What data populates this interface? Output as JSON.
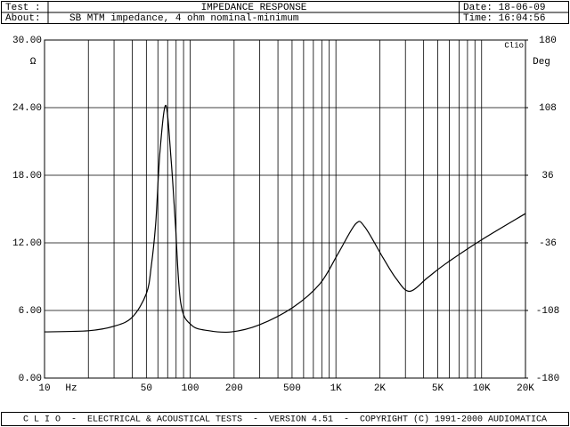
{
  "chart_data": {
    "type": "line",
    "test_label": "Test :",
    "title": "IMPEDANCE RESPONSE",
    "date": "Date: 18-06-09",
    "about_label": "About:",
    "about": "SB MTM impedance, 4 ohm nominal-minimum",
    "time": "Time: 16:04:56",
    "footer": "C L I O  -  ELECTRICAL & ACOUSTICAL TESTS  -  VERSION 4.51  -  COPYRIGHT (C) 1991-2000 AUDIOMATICA",
    "x_unit": "Hz",
    "y_unit": "Ω",
    "y2_unit": "Deg",
    "brand": "Clio",
    "log_x": true,
    "grid": true,
    "xlim": [
      10,
      20000
    ],
    "xticks": [
      10,
      50,
      100,
      200,
      500,
      {
        "value": 1000,
        "label": "1K"
      },
      {
        "value": 2000,
        "label": "2K"
      },
      {
        "value": 5000,
        "label": "5K"
      },
      {
        "value": 10000,
        "label": "10K"
      },
      {
        "value": 20000,
        "label": "20K"
      }
    ],
    "xgrid": [
      20,
      30,
      40,
      60,
      70,
      80,
      90,
      300,
      400,
      600,
      700,
      800,
      900,
      3000,
      4000,
      6000,
      7000,
      8000,
      9000
    ],
    "ylim": [
      0,
      30
    ],
    "yticks": [
      {
        "value": 0,
        "label": "0.00"
      },
      {
        "value": 6,
        "label": "6.00"
      },
      {
        "value": 12,
        "label": "12.00"
      },
      {
        "value": 18,
        "label": "18.00"
      },
      {
        "value": 24,
        "label": "24.00"
      },
      {
        "value": 30,
        "label": "30.00"
      }
    ],
    "y2lim": [
      -180,
      180
    ],
    "y2ticks": [
      -180,
      -108,
      -36,
      36,
      108,
      180
    ],
    "x": [
      10,
      20,
      30,
      40,
      50,
      54,
      58,
      62,
      68,
      74,
      79,
      86,
      102,
      135,
      192,
      295,
      510,
      780,
      1040,
      1370,
      1580,
      2100,
      2600,
      3200,
      4250,
      5600,
      9800,
      20000
    ],
    "series": [
      {
        "color": "#000000",
        "values": [
          4.1,
          4.2,
          4.6,
          5.4,
          7.5,
          9.9,
          13.8,
          20.1,
          24.2,
          19.3,
          13.8,
          6.7,
          4.7,
          4.2,
          4.1,
          4.7,
          6.3,
          8.4,
          11.1,
          13.7,
          13.4,
          10.7,
          8.8,
          7.7,
          8.9,
          10.1,
          12.2,
          14.6
        ]
      }
    ]
  }
}
